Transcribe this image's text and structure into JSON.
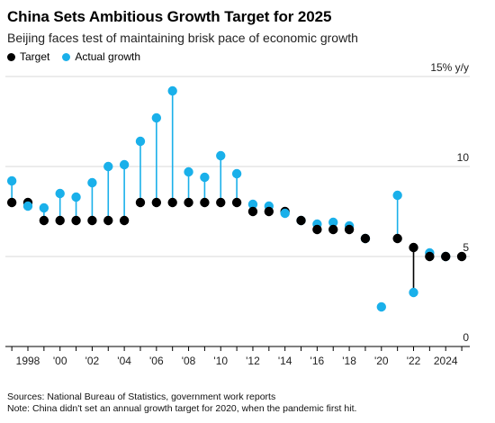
{
  "title": "China Sets Ambitious Growth Target for 2025",
  "subtitle": "Beijing faces test of maintaining brisk pace of economic growth",
  "legend": [
    {
      "label": "Target",
      "color": "#000000"
    },
    {
      "label": "Actual growth",
      "color": "#1ab0ea"
    }
  ],
  "source": "Sources: National Bureau of Statistics, government work reports",
  "note": "Note: China didn't set an annual growth target for 2020, when the pandemic first hit.",
  "chart_data": {
    "type": "scatter",
    "x": [
      1997,
      1998,
      1999,
      2000,
      2001,
      2002,
      2003,
      2004,
      2005,
      2006,
      2007,
      2008,
      2009,
      2010,
      2011,
      2012,
      2013,
      2014,
      2015,
      2016,
      2017,
      2018,
      2019,
      2020,
      2021,
      2022,
      2023,
      2024,
      2025
    ],
    "series": [
      {
        "name": "Target",
        "color": "#000000",
        "values": [
          8,
          8,
          7,
          7,
          7,
          7,
          7,
          7,
          8,
          8,
          8,
          8,
          8,
          8,
          8,
          7.5,
          7.5,
          7.5,
          7,
          6.5,
          6.5,
          6.5,
          6,
          null,
          6,
          5.5,
          5,
          5,
          5
        ]
      },
      {
        "name": "Actual growth",
        "color": "#1ab0ea",
        "values": [
          9.2,
          7.8,
          7.7,
          8.5,
          8.3,
          9.1,
          10.0,
          10.1,
          11.4,
          12.7,
          14.2,
          9.7,
          9.4,
          10.6,
          9.6,
          7.9,
          7.8,
          7.4,
          7.0,
          6.8,
          6.9,
          6.7,
          6.0,
          2.2,
          8.4,
          3.0,
          5.2,
          5.0,
          null
        ]
      }
    ],
    "xticks": [
      {
        "value": 1998,
        "label": "1998"
      },
      {
        "value": 2000,
        "label": "'00"
      },
      {
        "value": 2002,
        "label": "'02"
      },
      {
        "value": 2004,
        "label": "'04"
      },
      {
        "value": 2006,
        "label": "'06"
      },
      {
        "value": 2008,
        "label": "'08"
      },
      {
        "value": 2010,
        "label": "'10"
      },
      {
        "value": 2012,
        "label": "'12"
      },
      {
        "value": 2014,
        "label": "'14"
      },
      {
        "value": 2016,
        "label": "'16"
      },
      {
        "value": 2018,
        "label": "'18"
      },
      {
        "value": 2020,
        "label": "'20"
      },
      {
        "value": 2022,
        "label": "'22"
      },
      {
        "value": 2024,
        "label": "2024"
      }
    ],
    "yticks": [
      {
        "value": 0,
        "label": "0"
      },
      {
        "value": 5,
        "label": "5"
      },
      {
        "value": 10,
        "label": "10"
      },
      {
        "value": 15,
        "label": "15% y/y"
      }
    ],
    "xlim": [
      1996.6,
      2025.5
    ],
    "ylim": [
      0,
      15
    ],
    "grid": true,
    "legend_position": "top-left"
  }
}
